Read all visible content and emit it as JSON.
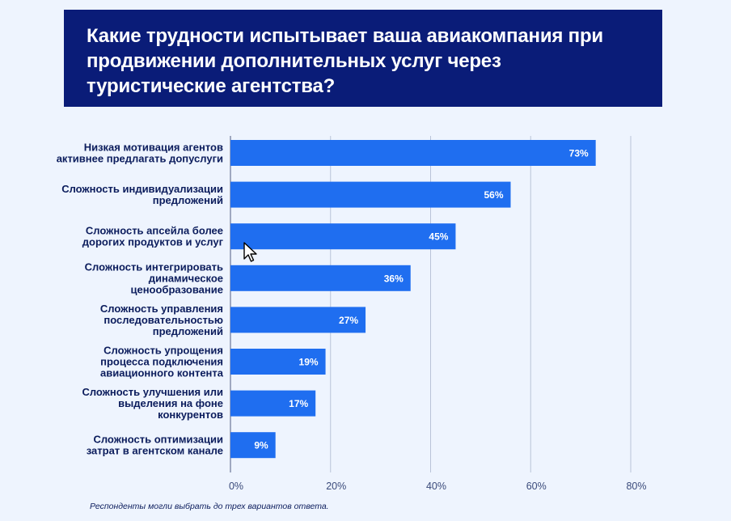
{
  "header": {
    "title": "Какие трудности испытывает ваша авиакомпания при продвижении дополнительных услуг через туристические агентства?"
  },
  "footnote": "Респонденты могли выбрать до трех вариантов ответа.",
  "colors": {
    "title_bg": "#0a1c78",
    "bar": "#1f6ef0",
    "background": "#eef4fe"
  },
  "chart_data": {
    "type": "bar",
    "orientation": "horizontal",
    "title": "Какие трудности испытывает ваша авиакомпания при продвижении дополнительных услуг через туристические агентства?",
    "categories": [
      [
        "Низкая мотивация агентов",
        "активнее предлагать допуслуги"
      ],
      [
        "Сложность индивидуализации",
        "предложений"
      ],
      [
        "Сложность апсейла более",
        "дорогих продуктов и услуг"
      ],
      [
        "Сложность интегрировать",
        "динамическое",
        "ценообразование"
      ],
      [
        "Сложность управления",
        "последовательностью",
        "предложений"
      ],
      [
        "Сложность упрощения",
        "процесса подключения",
        "авиационного контента"
      ],
      [
        "Сложность улучшения или",
        "выделения на фоне",
        "конкурентов"
      ],
      [
        "Сложность оптимизации",
        "затрат в агентском канале"
      ]
    ],
    "values": [
      73,
      56,
      45,
      36,
      27,
      19,
      17,
      9
    ],
    "value_labels": [
      "73%",
      "56%",
      "45%",
      "36%",
      "27%",
      "19%",
      "17%",
      "9%"
    ],
    "xlim": [
      0,
      80
    ],
    "xticks": [
      "0%",
      "20%",
      "40%",
      "60%",
      "80%"
    ],
    "grid": true
  }
}
